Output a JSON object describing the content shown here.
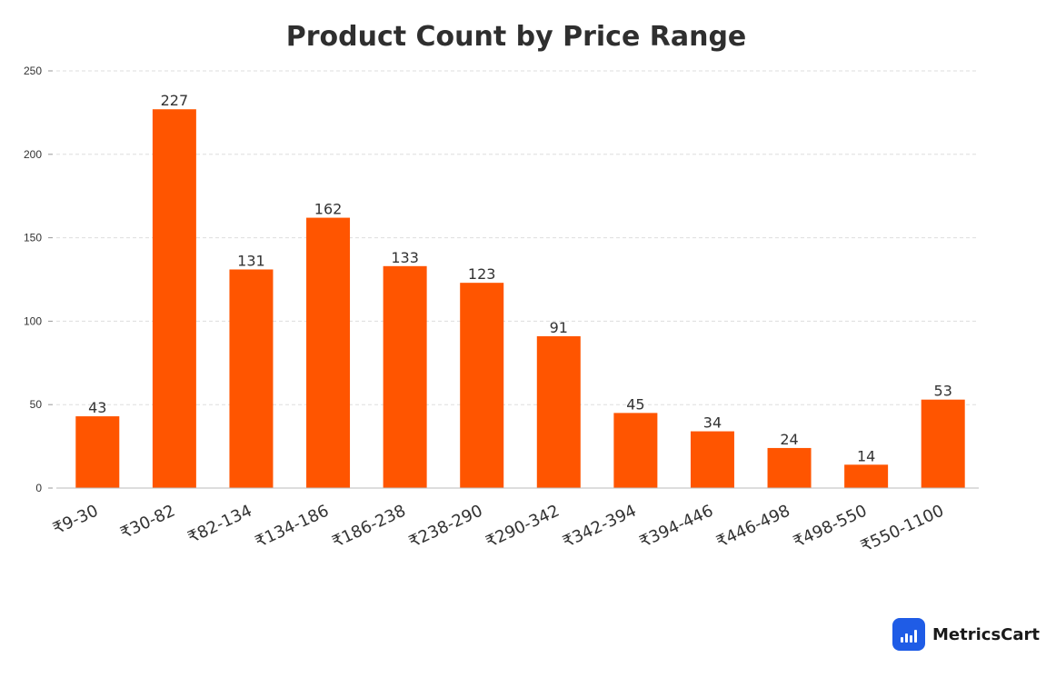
{
  "chart_data": {
    "type": "bar",
    "title": "Product Count by Price Range",
    "xlabel": "",
    "ylabel": "",
    "categories": [
      "₹9-30",
      "₹30-82",
      "₹82-134",
      "₹134-186",
      "₹186-238",
      "₹238-290",
      "₹290-342",
      "₹342-394",
      "₹394-446",
      "₹446-498",
      "₹498-550",
      "₹550-1100"
    ],
    "values": [
      43,
      227,
      131,
      162,
      133,
      123,
      91,
      45,
      34,
      24,
      14,
      53
    ],
    "ylim": [
      0,
      250
    ],
    "yticks": [
      0,
      50,
      100,
      150,
      200,
      250
    ],
    "bar_color": "#ff5500",
    "grid": true,
    "data_labels": true
  },
  "brand": {
    "name": "MetricsCart",
    "logo_icon": "bar-chart-icon",
    "logo_color": "#1f5ce6"
  }
}
